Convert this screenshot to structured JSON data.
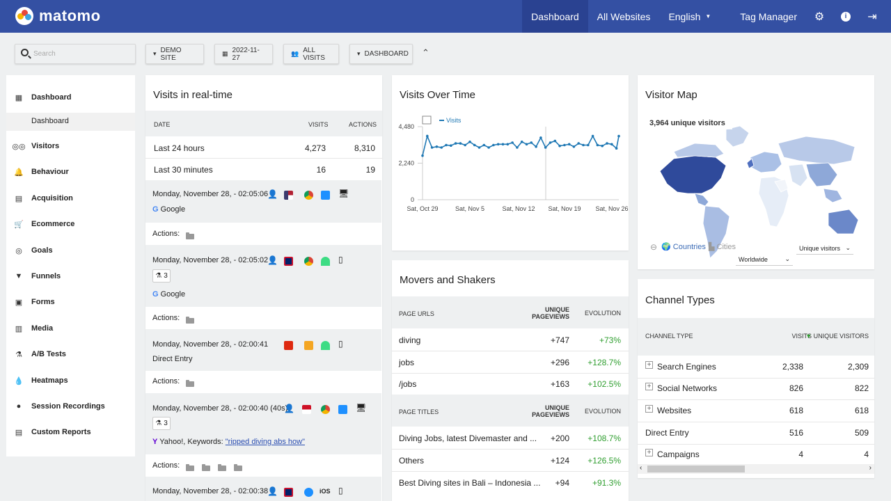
{
  "app": {
    "logo_text": "matomo",
    "nav": {
      "dashboard": "Dashboard",
      "all_websites": "All Websites",
      "language": "English",
      "tag_manager": "Tag Manager"
    }
  },
  "filters": {
    "search_placeholder": "Search",
    "site": "DEMO SITE",
    "date": "2022-11-27",
    "segment": "ALL VISITS",
    "dashboard": "DASHBOARD"
  },
  "sidebar": {
    "items": [
      {
        "label": "Dashboard",
        "icon": "grid-icon"
      },
      {
        "label": "Visitors",
        "icon": "binoculars-icon"
      },
      {
        "label": "Behaviour",
        "icon": "bell-icon"
      },
      {
        "label": "Acquisition",
        "icon": "acquisition-icon"
      },
      {
        "label": "Ecommerce",
        "icon": "cart-icon"
      },
      {
        "label": "Goals",
        "icon": "target-icon"
      },
      {
        "label": "Funnels",
        "icon": "funnel-icon"
      },
      {
        "label": "Forms",
        "icon": "forms-icon"
      },
      {
        "label": "Media",
        "icon": "media-icon"
      },
      {
        "label": "A/B Tests",
        "icon": "flask-icon"
      },
      {
        "label": "Heatmaps",
        "icon": "heatmap-icon"
      },
      {
        "label": "Session Recordings",
        "icon": "record-icon"
      },
      {
        "label": "Custom Reports",
        "icon": "reports-icon"
      }
    ],
    "sub_dashboard": "Dashboard"
  },
  "realtime": {
    "title": "Visits in real-time",
    "headers": {
      "date": "DATE",
      "visits": "VISITS",
      "actions": "ACTIONS"
    },
    "summary": [
      {
        "label": "Last 24 hours",
        "visits": "4,273",
        "actions": "8,310"
      },
      {
        "label": "Last 30 minutes",
        "visits": "16",
        "actions": "19"
      }
    ],
    "visits": [
      {
        "time": "Monday, November 28, - 02:05:06",
        "source": "Google",
        "actions_label": "Actions:"
      },
      {
        "time": "Monday, November 28, - 02:05:02",
        "badge": "3",
        "source": "Google",
        "actions_label": "Actions:"
      },
      {
        "time": "Monday, November 28, - 02:00:41",
        "source": "Direct Entry",
        "actions_label": "Actions:"
      },
      {
        "time": "Monday, November 28, - 02:00:40 (40s)",
        "badge": "3",
        "source_prefix": "Yahoo!, Keywords: ",
        "keyword": "\"ripped diving abs how\"",
        "actions_label": "Actions:"
      },
      {
        "time": "Monday, November 28, - 02:00:38",
        "os_label": "iOS"
      }
    ]
  },
  "visits_over_time": {
    "title": "Visits Over Time",
    "legend": "Visits"
  },
  "chart_data": {
    "type": "line",
    "series": [
      {
        "name": "Visits",
        "values": [
          2700,
          3600,
          3900,
          3650,
          3200,
          3350,
          3250,
          3150,
          3200,
          3150,
          3350,
          3550,
          3320,
          3350,
          3450,
          3300,
          3450,
          3450,
          3350,
          3450,
          3550,
          3300,
          3350,
          3550,
          3200,
          3150,
          3350,
          3300,
          3200,
          3550,
          3350,
          3450,
          3400,
          3250,
          3400,
          3450,
          3400,
          3200,
          3500,
          3600,
          3200,
          3150,
          3550,
          3500,
          3400,
          3450,
          3500,
          3300,
          3250,
          3400,
          3800,
          3250,
          3200,
          3550,
          3500,
          3350,
          3600,
          3500,
          3300,
          3150,
          3350,
          3500,
          3400,
          3450,
          3250,
          3300,
          3450,
          3500,
          3350,
          3200,
          3350,
          3400,
          3900,
          3200,
          3350,
          3650,
          3300,
          3250,
          3450,
          3350,
          3400,
          3200,
          3150,
          3900
        ]
      }
    ],
    "x_ticks": [
      "Sat, Oct 29",
      "Sat, Nov 5",
      "Sat, Nov 12",
      "Sat, Nov 19",
      "Sat, Nov 26"
    ],
    "y_ticks": [
      "4,480",
      "2,240",
      "0"
    ],
    "ylim": [
      0,
      4480
    ]
  },
  "visitor_map": {
    "title": "Visitor Map",
    "summary": "3,964 unique visitors",
    "tab_countries": "Countries",
    "tab_cities": "Cities",
    "metric_select": "Unique visitors",
    "region_select": "Worldwide"
  },
  "movers": {
    "title": "Movers and Shakers",
    "urls_header": {
      "label": "PAGE URLS",
      "unique_line1": "UNIQUE",
      "unique_line2": "PAGEVIEWS",
      "evolution": "EVOLUTION"
    },
    "urls": [
      {
        "label": "diving",
        "value": "+747",
        "evolution": "+73%"
      },
      {
        "label": "jobs",
        "value": "+296",
        "evolution": "+128.7%"
      },
      {
        "label": "/jobs",
        "value": "+163",
        "evolution": "+102.5%"
      }
    ],
    "titles_header": {
      "label": "PAGE TITLES",
      "unique_line1": "UNIQUE",
      "unique_line2": "PAGEVIEWS",
      "evolution": "EVOLUTION"
    },
    "titles": [
      {
        "label": "Diving Jobs, latest Divemaster and ...",
        "value": "+200",
        "evolution": "+108.7%"
      },
      {
        "label": "Others",
        "value": "+124",
        "evolution": "+126.5%"
      },
      {
        "label": "Best Diving sites in Bali – Indonesia ...",
        "value": "+94",
        "evolution": "+91.3%"
      }
    ]
  },
  "channels": {
    "title": "Channel Types",
    "headers": {
      "type": "CHANNEL TYPE",
      "visits": "VISITS",
      "unique": "UNIQUE VISITORS"
    },
    "rows": [
      {
        "label": "Search Engines",
        "visits": "2,338",
        "unique": "2,309",
        "expandable": true
      },
      {
        "label": "Social Networks",
        "visits": "826",
        "unique": "822",
        "expandable": true
      },
      {
        "label": "Websites",
        "visits": "618",
        "unique": "618",
        "expandable": true
      },
      {
        "label": "Direct Entry",
        "visits": "516",
        "unique": "509",
        "expandable": false
      },
      {
        "label": "Campaigns",
        "visits": "4",
        "unique": "4",
        "expandable": true
      }
    ]
  },
  "colors": {
    "topbar": "#3450a3",
    "line": "#1f78b4",
    "positive": "#2f9e2f",
    "link": "#2a4db1"
  }
}
